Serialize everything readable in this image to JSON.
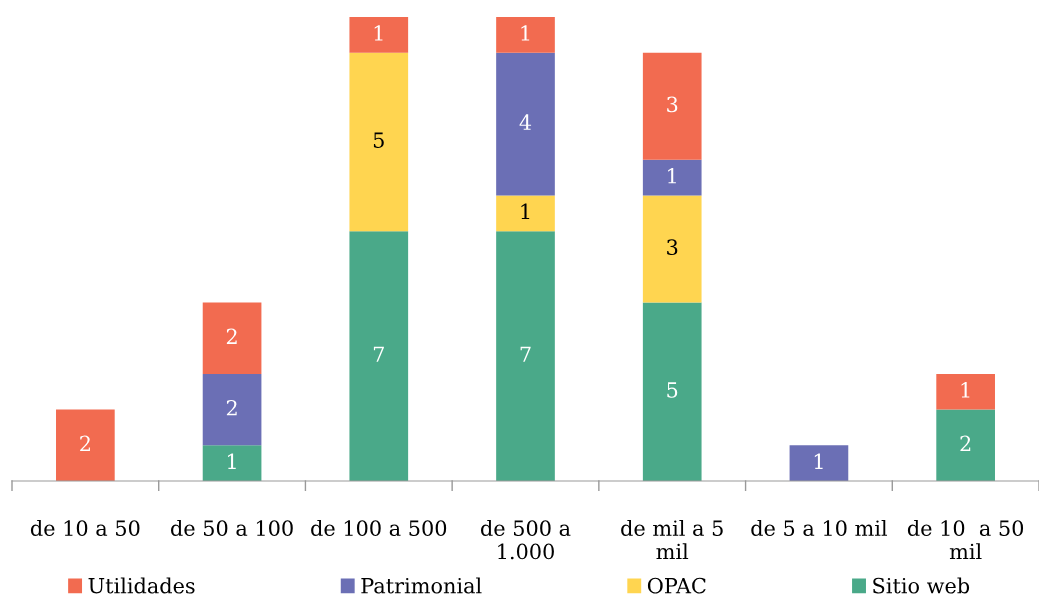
{
  "chart_data": {
    "type": "bar",
    "stacked": true,
    "data_labels": true,
    "legend": "bottom",
    "grid": false,
    "categories": [
      "de 10 a 50",
      "de 50 a 100",
      "de 100 a 500",
      "de 500 a\n1.000",
      "de mil a 5\nmil",
      "de 5 a 10 mil",
      "de 10  a 50\nmil"
    ],
    "series": [
      {
        "name": "Sitio web",
        "color": "#4aa989",
        "values": [
          null,
          1,
          7,
          7,
          5,
          null,
          2
        ]
      },
      {
        "name": "OPAC",
        "color": "#ffd550",
        "values": [
          null,
          null,
          5,
          1,
          3,
          null,
          null
        ]
      },
      {
        "name": "Patrimonial",
        "color": "#6b6fb5",
        "values": [
          null,
          2,
          null,
          4,
          1,
          1,
          null
        ]
      },
      {
        "name": "Utilidades",
        "color": "#f26b50",
        "values": [
          2,
          2,
          1,
          1,
          3,
          null,
          1
        ]
      }
    ]
  }
}
